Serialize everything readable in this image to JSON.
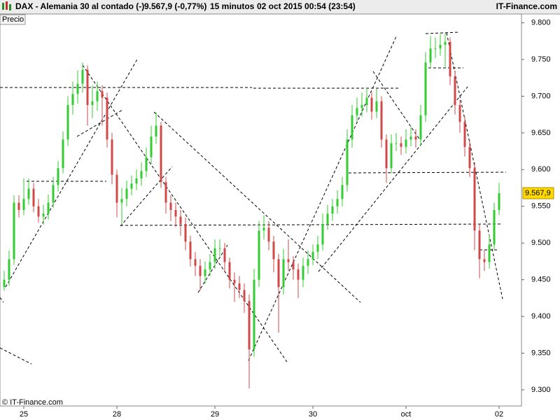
{
  "header": {
    "symbol": "DAX - Alemania 30 al contado (-)",
    "price": "9.567,9 (-0,77%)",
    "interval": "15 minutos",
    "datetime": "02 oct 2015 00:54 (23:54)",
    "site": "IT-Finance.com"
  },
  "panel_label": "Precio",
  "footer": "© IT-Finance.com",
  "chart_data": {
    "type": "candlestick",
    "categories": [
      null,
      null,
      null,
      null,
      "25",
      null,
      null,
      null,
      null,
      null,
      null,
      null,
      null,
      null,
      null,
      null,
      null,
      null,
      null,
      null,
      null,
      null,
      null,
      "28",
      null,
      null,
      null,
      null,
      null,
      null,
      null,
      null,
      null,
      null,
      null,
      null,
      null,
      null,
      null,
      null,
      null,
      null,
      null,
      "29",
      null,
      null,
      null,
      null,
      null,
      null,
      null,
      null,
      null,
      null,
      null,
      null,
      null,
      null,
      null,
      null,
      null,
      null,
      null,
      "30",
      null,
      null,
      null,
      null,
      null,
      null,
      null,
      null,
      null,
      null,
      null,
      null,
      null,
      null,
      null,
      null,
      null,
      null,
      "oct",
      null,
      null,
      null,
      null,
      null,
      null,
      null,
      null,
      null,
      null,
      null,
      null,
      null,
      null,
      null,
      null,
      null,
      null,
      "02"
    ],
    "open": [
      9440,
      9450,
      9478,
      9555,
      9545,
      9560,
      9574,
      9550,
      9536,
      9540,
      9555,
      9579,
      9602,
      9641,
      9688,
      9703,
      9717,
      9736,
      9688,
      9693,
      9707,
      9698,
      9641,
      9593,
      9555,
      9560,
      9574,
      9581,
      9588,
      9598,
      9617,
      9645,
      9660,
      9583,
      9555,
      9545,
      9536,
      9526,
      9502,
      9478,
      9469,
      9455,
      9464,
      9474,
      9493,
      9493,
      9474,
      9450,
      9445,
      9436,
      9421,
      9355,
      9450,
      9517,
      9521,
      9502,
      9478,
      9440,
      9478,
      9474,
      9464,
      9450,
      9469,
      9478,
      9488,
      9498,
      9526,
      9540,
      9550,
      9560,
      9579,
      9641,
      9674,
      9684,
      9688,
      9698,
      9679,
      9693,
      9641,
      9602,
      9636,
      9636,
      9631,
      9641,
      9645,
      9641,
      9674,
      9746,
      9765,
      9765,
      9770,
      9774,
      9727,
      9688,
      9665,
      9631,
      9602,
      9517,
      9478,
      9474,
      9498,
      9545
    ],
    "high": [
      9462,
      9490,
      9565,
      9565,
      9588,
      9588,
      9582,
      9560,
      9552,
      9566,
      9590,
      9612,
      9652,
      9700,
      9720,
      9735,
      9746,
      9742,
      9715,
      9720,
      9715,
      9705,
      9650,
      9600,
      9575,
      9585,
      9592,
      9600,
      9610,
      9630,
      9660,
      9678,
      9665,
      9590,
      9565,
      9555,
      9545,
      9535,
      9510,
      9488,
      9478,
      9475,
      9485,
      9505,
      9505,
      9500,
      9480,
      9460,
      9455,
      9445,
      9430,
      9465,
      9530,
      9538,
      9530,
      9510,
      9485,
      9492,
      9505,
      9482,
      9472,
      9480,
      9490,
      9498,
      9510,
      9540,
      9552,
      9560,
      9572,
      9590,
      9655,
      9688,
      9698,
      9705,
      9712,
      9705,
      9710,
      9700,
      9648,
      9648,
      9650,
      9645,
      9655,
      9658,
      9655,
      9688,
      9760,
      9782,
      9780,
      9785,
      9786,
      9780,
      9735,
      9695,
      9672,
      9640,
      9610,
      9525,
      9490,
      9512,
      9555,
      9582
    ],
    "low": [
      9435,
      9442,
      9470,
      9535,
      9538,
      9552,
      9542,
      9528,
      9525,
      9532,
      9548,
      9570,
      9595,
      9632,
      9675,
      9690,
      9705,
      9660,
      9670,
      9680,
      9660,
      9630,
      9580,
      9535,
      9525,
      9550,
      9565,
      9572,
      9578,
      9590,
      9608,
      9635,
      9575,
      9540,
      9530,
      9522,
      9510,
      9490,
      9468,
      9455,
      9435,
      9445,
      9455,
      9465,
      9482,
      9462,
      9438,
      9420,
      9425,
      9405,
      9302,
      9345,
      9440,
      9505,
      9490,
      9460,
      9378,
      9430,
      9462,
      9450,
      9425,
      9440,
      9458,
      9470,
      9478,
      9490,
      9518,
      9530,
      9540,
      9550,
      9570,
      9630,
      9665,
      9672,
      9678,
      9668,
      9670,
      9630,
      9582,
      9595,
      9625,
      9620,
      9622,
      9632,
      9630,
      9632,
      9665,
      9738,
      9752,
      9755,
      9740,
      9715,
      9675,
      9650,
      9618,
      9590,
      9490,
      9452,
      9462,
      9465,
      9490,
      9538
    ],
    "close": [
      9450,
      9478,
      9555,
      9545,
      9560,
      9574,
      9550,
      9536,
      9540,
      9555,
      9579,
      9602,
      9641,
      9688,
      9703,
      9717,
      9736,
      9688,
      9693,
      9707,
      9698,
      9641,
      9593,
      9555,
      9560,
      9574,
      9581,
      9588,
      9598,
      9617,
      9645,
      9660,
      9583,
      9555,
      9545,
      9536,
      9526,
      9502,
      9478,
      9469,
      9455,
      9464,
      9474,
      9493,
      9493,
      9474,
      9450,
      9445,
      9436,
      9421,
      9355,
      9450,
      9517,
      9521,
      9502,
      9478,
      9440,
      9478,
      9474,
      9464,
      9450,
      9469,
      9478,
      9488,
      9498,
      9526,
      9540,
      9550,
      9560,
      9579,
      9641,
      9674,
      9684,
      9688,
      9698,
      9679,
      9693,
      9641,
      9602,
      9636,
      9636,
      9631,
      9641,
      9645,
      9641,
      9674,
      9746,
      9765,
      9765,
      9770,
      9774,
      9727,
      9688,
      9665,
      9631,
      9602,
      9517,
      9478,
      9474,
      9498,
      9545,
      9568
    ],
    "ylim": [
      9278,
      9812
    ],
    "yticks": [
      {
        "value": 9300,
        "label": "9.300"
      },
      {
        "value": 9350,
        "label": "9.350"
      },
      {
        "value": 9400,
        "label": "9.400"
      },
      {
        "value": 9450,
        "label": "9.450"
      },
      {
        "value": 9500,
        "label": "9.500"
      },
      {
        "value": 9550,
        "label": "9.550"
      },
      {
        "value": 9600,
        "label": "9.600"
      },
      {
        "value": 9650,
        "label": "9.650"
      },
      {
        "value": 9700,
        "label": "9.700"
      },
      {
        "value": 9750,
        "label": "9.750"
      },
      {
        "value": 9800,
        "label": "9.800"
      }
    ],
    "last_price": {
      "value": 9567.9,
      "label": "9.567,9"
    },
    "up_color": "#33cc33",
    "down_color": "#d04848",
    "grid": false
  }
}
